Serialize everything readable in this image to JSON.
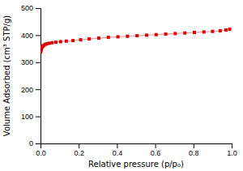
{
  "chart_data": {
    "type": "line",
    "xlabel": "Relative pressure (p/p₀)",
    "ylabel": "Volume Adsorbed (cm³ STP/g)",
    "x": [
      0.001,
      0.002,
      0.004,
      0.006,
      0.009,
      0.013,
      0.018,
      0.025,
      0.033,
      0.045,
      0.06,
      0.08,
      0.105,
      0.135,
      0.17,
      0.21,
      0.255,
      0.305,
      0.355,
      0.405,
      0.455,
      0.505,
      0.555,
      0.605,
      0.655,
      0.705,
      0.755,
      0.805,
      0.855,
      0.9,
      0.94,
      0.97,
      0.99
    ],
    "values": [
      338,
      344,
      349,
      353,
      357,
      360,
      363,
      366,
      368,
      370,
      372,
      374,
      376,
      378,
      380,
      383,
      386,
      389,
      392,
      394,
      396,
      398,
      400,
      402,
      404,
      406,
      408,
      410,
      412,
      414,
      416,
      419,
      422
    ],
    "color": "#dd0000",
    "marker": "square",
    "grid": false,
    "xlim": [
      0.0,
      1.0
    ],
    "ylim": [
      0,
      500
    ],
    "xticks": [
      {
        "value": 0,
        "label": "0.0"
      },
      0.2,
      0.4,
      0.6,
      0.8,
      {
        "value": 1,
        "label": "1.0"
      }
    ],
    "yticks": [
      0,
      100,
      200,
      300,
      400,
      500
    ]
  }
}
